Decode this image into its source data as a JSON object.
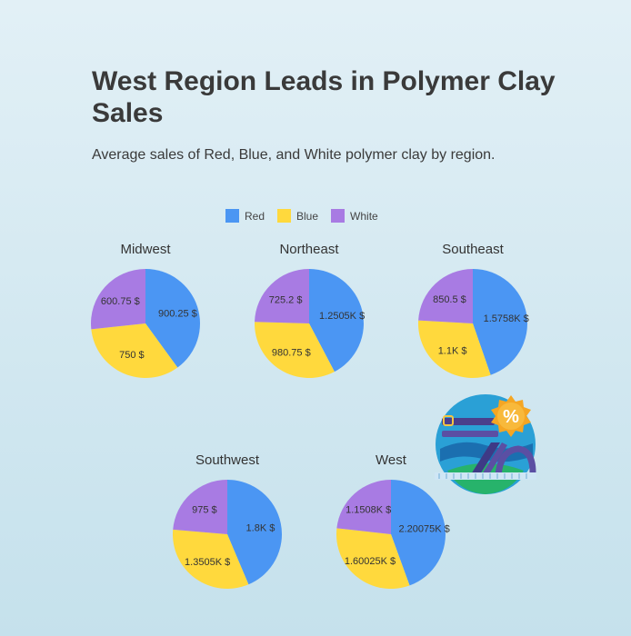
{
  "header": {
    "title": "West Region Leads in Polymer Clay Sales",
    "subtitle": "Average sales of Red, Blue, and White polymer clay by region."
  },
  "colors": {
    "red": "#4b96f3",
    "blue": "#ffd93d",
    "white": "#a87be3"
  },
  "decoration": {
    "icon": "sale-percent-badge-icon"
  },
  "chart_data": {
    "type": "pie",
    "legend_position": "top",
    "series_names": [
      "Red",
      "Blue",
      "White"
    ],
    "series_colors": [
      "#4b96f3",
      "#ffd93d",
      "#a87be3"
    ],
    "pies": [
      {
        "region": "Midwest",
        "values": [
          900.25,
          750,
          600.75
        ],
        "labels": [
          "900.25 $",
          "750 $",
          "600.75 $"
        ]
      },
      {
        "region": "Northeast",
        "values": [
          1250.5,
          980.75,
          725.2
        ],
        "labels": [
          "1.2505K $",
          "980.75 $",
          "725.2 $"
        ]
      },
      {
        "region": "Southeast",
        "values": [
          1575.8,
          1100,
          850.5
        ],
        "labels": [
          "1.5758K $",
          "1.1K $",
          "850.5 $"
        ]
      },
      {
        "region": "Southwest",
        "values": [
          1800,
          1350.5,
          975
        ],
        "labels": [
          "1.8K $",
          "1.3505K $",
          "975 $"
        ]
      },
      {
        "region": "West",
        "values": [
          2200.75,
          1600.25,
          1150.8
        ],
        "labels": [
          "2.20075K $",
          "1.60025K $",
          "1.1508K $"
        ]
      }
    ]
  }
}
